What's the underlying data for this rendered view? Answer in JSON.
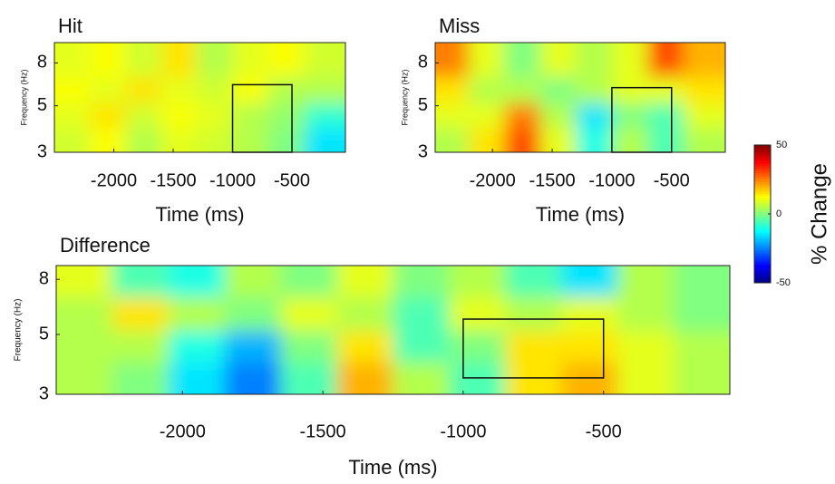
{
  "chart_data": [
    {
      "type": "heatmap",
      "title": "Hit",
      "xlabel": "Time (ms)",
      "ylabel": "Frequency (Hz)",
      "xlim": [
        -2500,
        -50
      ],
      "ylim": [
        3,
        10
      ],
      "ylog": true,
      "xticks": [
        -2000,
        -1500,
        -1000,
        -500
      ],
      "yticks": [
        3,
        5,
        8
      ],
      "x": [
        -2350,
        -2050,
        -1750,
        -1450,
        -1150,
        -850,
        -550,
        -250
      ],
      "y": [
        3.5,
        4.5,
        6,
        8
      ],
      "z": [
        [
          8,
          12,
          5,
          10,
          8,
          5,
          0,
          -15
        ],
        [
          10,
          15,
          8,
          12,
          10,
          5,
          2,
          -8
        ],
        [
          12,
          10,
          15,
          10,
          8,
          12,
          5,
          5
        ],
        [
          10,
          12,
          8,
          15,
          5,
          10,
          12,
          8
        ]
      ],
      "box": {
        "x": [
          -1000,
          -500
        ],
        "y": [
          3,
          6.3
        ]
      }
    },
    {
      "type": "heatmap",
      "title": "Miss",
      "xlabel": "Time (ms)",
      "ylabel": "Frequency (Hz)",
      "xlim": [
        -2480,
        -50
      ],
      "ylim": [
        3,
        10
      ],
      "ylog": true,
      "xticks": [
        -2000,
        -1500,
        -1000,
        -500
      ],
      "yticks": [
        3,
        5,
        8
      ],
      "x": [
        -2350,
        -2050,
        -1750,
        -1450,
        -1150,
        -850,
        -550,
        -250
      ],
      "y": [
        3.5,
        4.5,
        6,
        8
      ],
      "z": [
        [
          5,
          15,
          30,
          10,
          -10,
          5,
          -5,
          5
        ],
        [
          10,
          10,
          25,
          5,
          -15,
          0,
          -5,
          10
        ],
        [
          15,
          5,
          5,
          0,
          5,
          10,
          10,
          15
        ],
        [
          25,
          10,
          0,
          10,
          5,
          10,
          30,
          20
        ]
      ],
      "box": {
        "x": [
          -1000,
          -500
        ],
        "y": [
          3,
          6.1
        ]
      }
    },
    {
      "type": "heatmap",
      "title": "Difference",
      "xlabel": "Time (ms)",
      "ylabel": "Frequency (Hz)",
      "xlim": [
        -2450,
        -50
      ],
      "ylim": [
        3,
        9
      ],
      "ylog": true,
      "xticks": [
        -2000,
        -1500,
        -1000,
        -500
      ],
      "yticks": [
        3,
        5,
        8
      ],
      "x": [
        -2350,
        -2150,
        -1950,
        -1750,
        -1550,
        -1350,
        -1150,
        -950,
        -750,
        -550,
        -350,
        -150
      ],
      "y": [
        3.5,
        4.5,
        6,
        8
      ],
      "z": [
        [
          5,
          0,
          -15,
          -25,
          -5,
          20,
          5,
          -5,
          15,
          20,
          10,
          5
        ],
        [
          5,
          5,
          -10,
          -20,
          0,
          15,
          -5,
          0,
          15,
          15,
          10,
          5
        ],
        [
          5,
          15,
          5,
          0,
          10,
          5,
          -5,
          10,
          5,
          10,
          5,
          0
        ],
        [
          10,
          -5,
          -10,
          5,
          0,
          10,
          0,
          5,
          -5,
          -15,
          5,
          0
        ]
      ],
      "box": {
        "x": [
          -1000,
          -500
        ],
        "y": [
          3.45,
          5.7
        ]
      }
    },
    {
      "type": "colorbar",
      "label": "% Change",
      "ylim": [
        -50,
        50
      ],
      "yticks": [
        -50,
        0,
        50
      ]
    }
  ]
}
